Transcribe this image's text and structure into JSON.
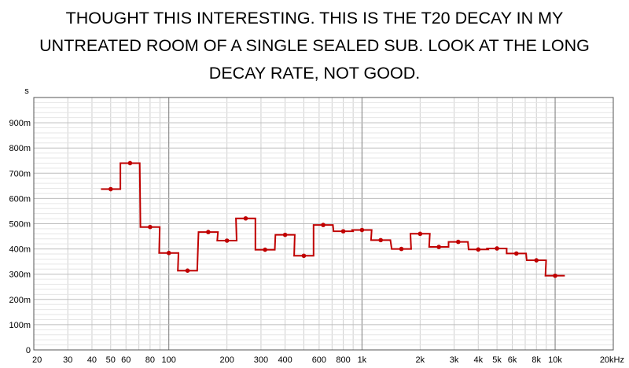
{
  "caption": {
    "lines": [
      "THOUGHT THIS INTERESTING. THIS IS THE T20 DECAY IN MY",
      "UNTREATED ROOM OF A SINGLE SEALED SUB. LOOK AT THE LONG",
      "DECAY RATE, NOT GOOD."
    ]
  },
  "chart_data": {
    "type": "line",
    "title": "",
    "xlabel": "",
    "ylabel": "s",
    "x_scale": "log",
    "xlim": [
      20,
      20000
    ],
    "ylim": [
      0,
      1.0
    ],
    "grid": true,
    "y_ticks": [
      {
        "v": 0,
        "label": "0"
      },
      {
        "v": 0.1,
        "label": "100m"
      },
      {
        "v": 0.2,
        "label": "200m"
      },
      {
        "v": 0.3,
        "label": "300m"
      },
      {
        "v": 0.4,
        "label": "400m"
      },
      {
        "v": 0.5,
        "label": "500m"
      },
      {
        "v": 0.6,
        "label": "600m"
      },
      {
        "v": 0.7,
        "label": "700m"
      },
      {
        "v": 0.8,
        "label": "800m"
      },
      {
        "v": 0.9,
        "label": "900m"
      }
    ],
    "x_ticks": [
      {
        "v": 20,
        "label": "20"
      },
      {
        "v": 30,
        "label": "30"
      },
      {
        "v": 40,
        "label": "40"
      },
      {
        "v": 50,
        "label": "50"
      },
      {
        "v": 60,
        "label": "60"
      },
      {
        "v": 80,
        "label": "80"
      },
      {
        "v": 100,
        "label": "100"
      },
      {
        "v": 200,
        "label": "200"
      },
      {
        "v": 300,
        "label": "300"
      },
      {
        "v": 400,
        "label": "400"
      },
      {
        "v": 600,
        "label": "600"
      },
      {
        "v": 800,
        "label": "800"
      },
      {
        "v": 1000,
        "label": "1k"
      },
      {
        "v": 2000,
        "label": "2k"
      },
      {
        "v": 3000,
        "label": "3k"
      },
      {
        "v": 4000,
        "label": "4k"
      },
      {
        "v": 5000,
        "label": "5k"
      },
      {
        "v": 6000,
        "label": "6k"
      },
      {
        "v": 8000,
        "label": "8k"
      },
      {
        "v": 10000,
        "label": "10k"
      },
      {
        "v": 20000,
        "label": "20kHz"
      }
    ],
    "series": [
      {
        "color": "#c00000",
        "x": [
          50,
          63,
          80,
          100,
          125,
          160,
          200,
          250,
          315,
          400,
          500,
          630,
          800,
          1000,
          1250,
          1600,
          2000,
          2500,
          3150,
          4000,
          5000,
          6300,
          8000,
          10000
        ],
        "values": [
          0.637,
          0.74,
          0.487,
          0.384,
          0.314,
          0.467,
          0.433,
          0.521,
          0.397,
          0.456,
          0.373,
          0.495,
          0.47,
          0.475,
          0.435,
          0.4,
          0.46,
          0.408,
          0.428,
          0.398,
          0.402,
          0.382,
          0.355,
          0.294
        ]
      }
    ]
  }
}
